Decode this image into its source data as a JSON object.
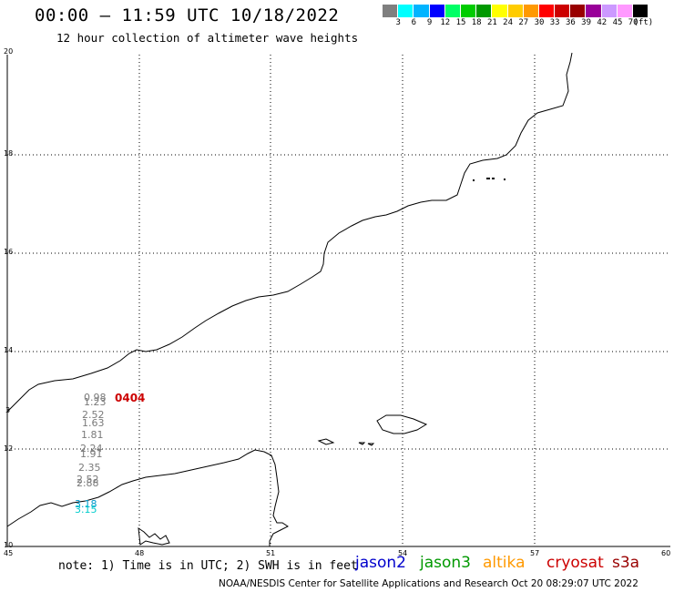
{
  "title": "00:00 – 11:59 UTC 10/18/2022",
  "subtitle": "12 hour collection of altimeter wave heights",
  "colorbar": {
    "colors": [
      "#7f7f7f",
      "#00ffff",
      "#00b4ff",
      "#0000ff",
      "#00ff66",
      "#00cc00",
      "#009900",
      "#ffff00",
      "#ffcc00",
      "#ff9900",
      "#ff0000",
      "#cc0000",
      "#990000",
      "#990099",
      "#cc99ff",
      "#ff99ff",
      "#000000"
    ],
    "labels": [
      "3",
      "6",
      "9",
      "12",
      "15",
      "18",
      "21",
      "24",
      "27",
      "30",
      "33",
      "36",
      "39",
      "42",
      "45",
      "70",
      "(ft)"
    ]
  },
  "axes": {
    "y_ticks": [
      "20",
      "18",
      "16",
      "14",
      "12",
      "10"
    ],
    "x_ticks": [
      "45",
      "48",
      "51",
      "54",
      "57",
      "60"
    ],
    "extra_y_label": "3"
  },
  "wave_heights": {
    "labels": [
      "0.98",
      "1.23",
      "2.52",
      "1.63",
      "1.81",
      "2.24",
      "1.91",
      "2.35",
      "2.52",
      "2.88",
      "3.18",
      "3.15"
    ],
    "station_id": "0404"
  },
  "footer": {
    "note": "note: 1) Time is in UTC; 2) SWH is in feet",
    "satellites": [
      {
        "name": "jason2",
        "color": "#0000cc"
      },
      {
        "name": "jason3",
        "color": "#009900"
      },
      {
        "name": "altika",
        "color": "#ff9900"
      },
      {
        "name": "cryosat",
        "color": "#cc0000"
      },
      {
        "name": "s3a",
        "color": "#990000"
      }
    ],
    "credit": "NOAA/NESDIS Center for Satellite Applications and Research    Oct 20 08:29:07 UTC 2022"
  }
}
